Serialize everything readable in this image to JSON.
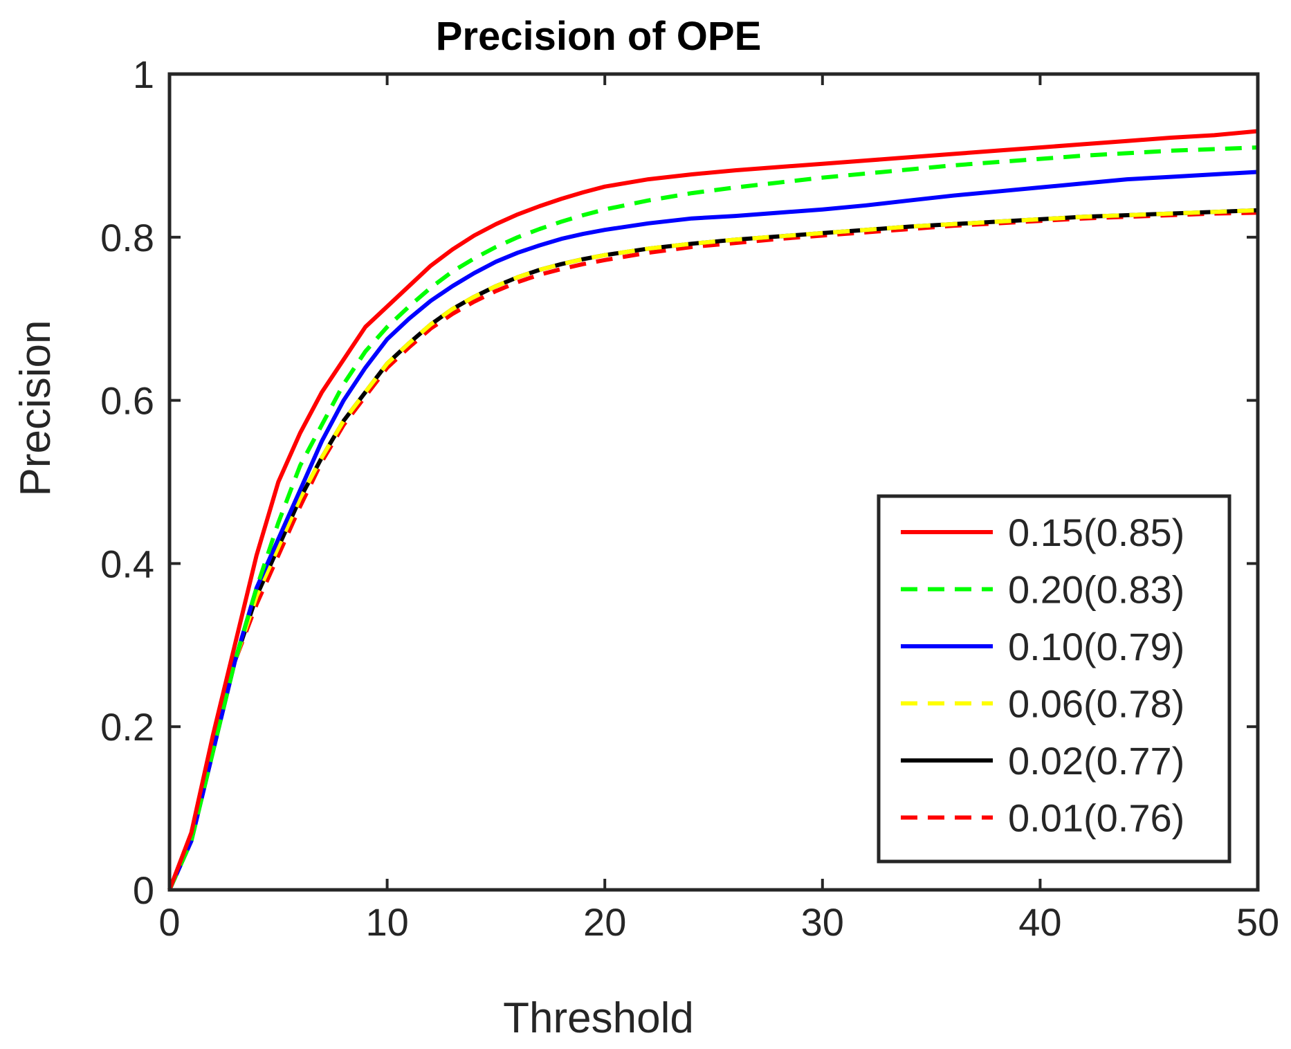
{
  "chart_data": {
    "type": "line",
    "title": "Precision of OPE",
    "xlabel": "Threshold",
    "ylabel": "Precision",
    "xlim": [
      0,
      50
    ],
    "ylim": [
      0,
      1
    ],
    "xticks": [
      0,
      10,
      20,
      30,
      40,
      50
    ],
    "xtick_labels": [
      "0",
      "10",
      "20",
      "30",
      "40",
      "50"
    ],
    "yticks": [
      0,
      0.2,
      0.4,
      0.6,
      0.8,
      1
    ],
    "ytick_labels": [
      "0",
      "0.2",
      "0.4",
      "0.6",
      "0.8",
      "1"
    ],
    "grid": false,
    "legend_position": "bottom-right",
    "x": [
      0,
      1,
      2,
      3,
      4,
      5,
      6,
      7,
      8,
      9,
      10,
      11,
      12,
      13,
      14,
      15,
      16,
      17,
      18,
      19,
      20,
      22,
      24,
      26,
      28,
      30,
      32,
      34,
      36,
      38,
      40,
      42,
      44,
      46,
      48,
      50
    ],
    "series": [
      {
        "name": "0.15(0.85)",
        "color": "#ff0000",
        "style": "solid",
        "values": [
          0.0,
          0.07,
          0.19,
          0.3,
          0.41,
          0.5,
          0.56,
          0.61,
          0.65,
          0.69,
          0.715,
          0.74,
          0.765,
          0.785,
          0.802,
          0.816,
          0.828,
          0.838,
          0.847,
          0.855,
          0.862,
          0.871,
          0.877,
          0.882,
          0.886,
          0.89,
          0.894,
          0.898,
          0.902,
          0.906,
          0.91,
          0.914,
          0.918,
          0.922,
          0.925,
          0.93
        ]
      },
      {
        "name": "0.20(0.83)",
        "color": "#00ff00",
        "style": "dashed",
        "values": [
          0.0,
          0.06,
          0.17,
          0.28,
          0.37,
          0.45,
          0.52,
          0.57,
          0.62,
          0.66,
          0.69,
          0.715,
          0.738,
          0.758,
          0.774,
          0.788,
          0.8,
          0.81,
          0.819,
          0.827,
          0.834,
          0.845,
          0.854,
          0.861,
          0.867,
          0.873,
          0.878,
          0.883,
          0.888,
          0.892,
          0.896,
          0.9,
          0.903,
          0.906,
          0.908,
          0.91
        ]
      },
      {
        "name": "0.10(0.79)",
        "color": "#0000ff",
        "style": "solid",
        "values": [
          0.0,
          0.06,
          0.17,
          0.28,
          0.37,
          0.43,
          0.49,
          0.55,
          0.6,
          0.64,
          0.675,
          0.7,
          0.722,
          0.74,
          0.756,
          0.77,
          0.781,
          0.79,
          0.798,
          0.804,
          0.809,
          0.817,
          0.823,
          0.826,
          0.83,
          0.834,
          0.839,
          0.845,
          0.851,
          0.856,
          0.861,
          0.866,
          0.871,
          0.874,
          0.877,
          0.88
        ]
      },
      {
        "name": "0.06(0.78)",
        "color": "#ffff00",
        "style": "dashed",
        "values": [
          0.0,
          0.06,
          0.17,
          0.28,
          0.36,
          0.42,
          0.48,
          0.53,
          0.575,
          0.61,
          0.645,
          0.67,
          0.693,
          0.712,
          0.727,
          0.74,
          0.751,
          0.76,
          0.767,
          0.773,
          0.778,
          0.786,
          0.792,
          0.797,
          0.801,
          0.805,
          0.809,
          0.813,
          0.816,
          0.819,
          0.822,
          0.825,
          0.827,
          0.829,
          0.831,
          0.833
        ]
      },
      {
        "name": "0.02(0.77)",
        "color": "#000000",
        "style": "solid",
        "values": [
          0.0,
          0.06,
          0.17,
          0.28,
          0.36,
          0.42,
          0.48,
          0.53,
          0.575,
          0.61,
          0.645,
          0.67,
          0.693,
          0.712,
          0.727,
          0.74,
          0.751,
          0.76,
          0.767,
          0.773,
          0.778,
          0.786,
          0.792,
          0.797,
          0.801,
          0.805,
          0.809,
          0.813,
          0.816,
          0.819,
          0.822,
          0.825,
          0.827,
          0.829,
          0.831,
          0.833
        ]
      },
      {
        "name": "0.01(0.76)",
        "color": "#ff0000",
        "style": "dashed",
        "values": [
          0.0,
          0.06,
          0.17,
          0.28,
          0.35,
          0.41,
          0.47,
          0.525,
          0.57,
          0.605,
          0.64,
          0.665,
          0.688,
          0.706,
          0.721,
          0.734,
          0.745,
          0.754,
          0.761,
          0.767,
          0.772,
          0.781,
          0.788,
          0.793,
          0.798,
          0.802,
          0.806,
          0.81,
          0.814,
          0.817,
          0.82,
          0.823,
          0.825,
          0.827,
          0.829,
          0.83
        ]
      }
    ]
  }
}
